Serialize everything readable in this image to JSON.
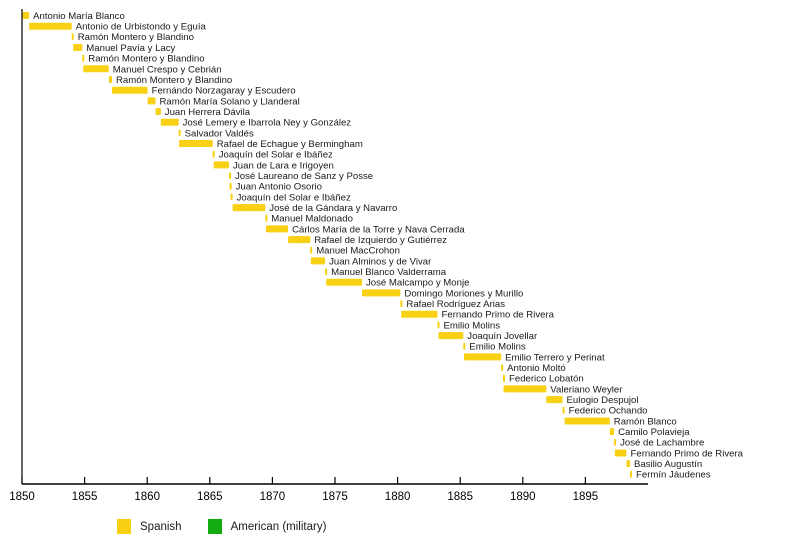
{
  "chart_data": {
    "type": "gantt",
    "title": "",
    "xlabel": "",
    "ylabel": "",
    "x_axis": {
      "min": 1850,
      "max": 1900,
      "ticks": [
        1850,
        1855,
        1860,
        1865,
        1870,
        1875,
        1880,
        1885,
        1890,
        1895
      ],
      "grid": false
    },
    "legend": [
      {
        "label": "Spanish",
        "color": "#f8d014",
        "swatch_icon": "yellow-square-icon"
      },
      {
        "label": "American (military)",
        "color": "#12ac12",
        "swatch_icon": "green-square-icon"
      }
    ],
    "entries": [
      {
        "name": "Antonio María Blanco",
        "group": "Spanish",
        "start": 1850.05,
        "end": 1850.57
      },
      {
        "name": "Antonio de Urbistondo y Eguía",
        "group": "Spanish",
        "start": 1850.57,
        "end": 1853.97
      },
      {
        "name": "Ramón Montero y Blandino",
        "group": "Spanish",
        "start": 1853.97,
        "end": 1854.09
      },
      {
        "name": "Manuel Pavía y Lacy",
        "group": "Spanish",
        "start": 1854.09,
        "end": 1854.82
      },
      {
        "name": "Ramón Montero y Blandino",
        "group": "Spanish",
        "start": 1854.82,
        "end": 1854.89
      },
      {
        "name": "Manuel Crespo y Cebrián",
        "group": "Spanish",
        "start": 1854.89,
        "end": 1856.93
      },
      {
        "name": "Ramón Montero y Blandino",
        "group": "Spanish",
        "start": 1856.93,
        "end": 1857.19
      },
      {
        "name": "Fernándo Norzagaray y Escudero",
        "group": "Spanish",
        "start": 1857.19,
        "end": 1860.03
      },
      {
        "name": "Ramón María Solano y Llanderal",
        "group": "Spanish",
        "start": 1860.03,
        "end": 1860.66
      },
      {
        "name": "Juan Herrera Dávila",
        "group": "Spanish",
        "start": 1860.66,
        "end": 1861.09
      },
      {
        "name": "José Lemery e Ibarrola Ney y González",
        "group": "Spanish",
        "start": 1861.09,
        "end": 1862.51
      },
      {
        "name": "Salvador Valdés",
        "group": "Spanish",
        "start": 1862.51,
        "end": 1862.55
      },
      {
        "name": "Rafael de Echague y Bermingham",
        "group": "Spanish",
        "start": 1862.55,
        "end": 1865.23
      },
      {
        "name": "Joaquín del Solar e Ibáñez",
        "group": "Spanish",
        "start": 1865.23,
        "end": 1865.31
      },
      {
        "name": "Juan de Lara e Irigoyen",
        "group": "Spanish",
        "start": 1865.31,
        "end": 1866.53
      },
      {
        "name": "José Laureano de Sanz y Posse",
        "group": "Spanish",
        "start": 1866.53,
        "end": 1866.58
      },
      {
        "name": "Juan Antonio Osorio",
        "group": "Spanish",
        "start": 1866.58,
        "end": 1866.66
      },
      {
        "name": "Joaquín del Solar e Ibáñez",
        "group": "Spanish",
        "start": 1866.66,
        "end": 1866.82
      },
      {
        "name": "José de la Gándara y Navarro",
        "group": "Spanish",
        "start": 1866.82,
        "end": 1869.43
      },
      {
        "name": "Manuel Maldonado",
        "group": "Spanish",
        "start": 1869.43,
        "end": 1869.48
      },
      {
        "name": "Cárlos María de la Torre y Nava Cerrada",
        "group": "Spanish",
        "start": 1869.48,
        "end": 1871.25
      },
      {
        "name": "Rafael de Izquierdo y Gutiérrez",
        "group": "Spanish",
        "start": 1871.25,
        "end": 1873.02
      },
      {
        "name": "Manuel MacCrohon",
        "group": "Spanish",
        "start": 1873.02,
        "end": 1873.07
      },
      {
        "name": "Juan Alminos y de Vivar",
        "group": "Spanish",
        "start": 1873.07,
        "end": 1874.21
      },
      {
        "name": "Manuel Blanco Valderrama",
        "group": "Spanish",
        "start": 1874.21,
        "end": 1874.3
      },
      {
        "name": "José Malcampo y Monje",
        "group": "Spanish",
        "start": 1874.3,
        "end": 1877.16
      },
      {
        "name": "Domingo Moriones y Murillo",
        "group": "Spanish",
        "start": 1877.16,
        "end": 1880.22
      },
      {
        "name": "Rafael Rodríguez Arias",
        "group": "Spanish",
        "start": 1880.22,
        "end": 1880.29
      },
      {
        "name": "Fernando Primo de Rivera",
        "group": "Spanish",
        "start": 1880.29,
        "end": 1883.19
      },
      {
        "name": "Emilio Molins",
        "group": "Spanish",
        "start": 1883.19,
        "end": 1883.27
      },
      {
        "name": "Joaquín Jovellar",
        "group": "Spanish",
        "start": 1883.27,
        "end": 1885.25
      },
      {
        "name": "Emilio Molins",
        "group": "Spanish",
        "start": 1885.25,
        "end": 1885.3
      },
      {
        "name": "Emilio Terrero y Perinat",
        "group": "Spanish",
        "start": 1885.3,
        "end": 1888.27
      },
      {
        "name": "Antonio Moltó",
        "group": "Spanish",
        "start": 1888.27,
        "end": 1888.42
      },
      {
        "name": "Federico Lobatón",
        "group": "Spanish",
        "start": 1888.42,
        "end": 1888.46
      },
      {
        "name": "Valeriano Weyler",
        "group": "Spanish",
        "start": 1888.46,
        "end": 1891.88
      },
      {
        "name": "Eulogio Despujol",
        "group": "Spanish",
        "start": 1891.88,
        "end": 1893.17
      },
      {
        "name": "Federico Ochando",
        "group": "Spanish",
        "start": 1893.17,
        "end": 1893.34
      },
      {
        "name": "Ramón Blanco",
        "group": "Spanish",
        "start": 1893.34,
        "end": 1896.95
      },
      {
        "name": "Camilo Polavieja",
        "group": "Spanish",
        "start": 1896.95,
        "end": 1897.29
      },
      {
        "name": "José de Lachambre",
        "group": "Spanish",
        "start": 1897.29,
        "end": 1897.35
      },
      {
        "name": "Fernando Primo de Rivera",
        "group": "Spanish",
        "start": 1897.35,
        "end": 1898.28
      },
      {
        "name": "Basilio Augustín",
        "group": "Spanish",
        "start": 1898.28,
        "end": 1898.56
      },
      {
        "name": "Fermín Jáudenes",
        "group": "Spanish",
        "start": 1898.56,
        "end": 1898.65
      }
    ],
    "colors": {
      "bar_spanish": "#f8d014",
      "bar_american": "#12ac12",
      "axis": "#000000",
      "label_text": "#1a1a1a"
    }
  }
}
